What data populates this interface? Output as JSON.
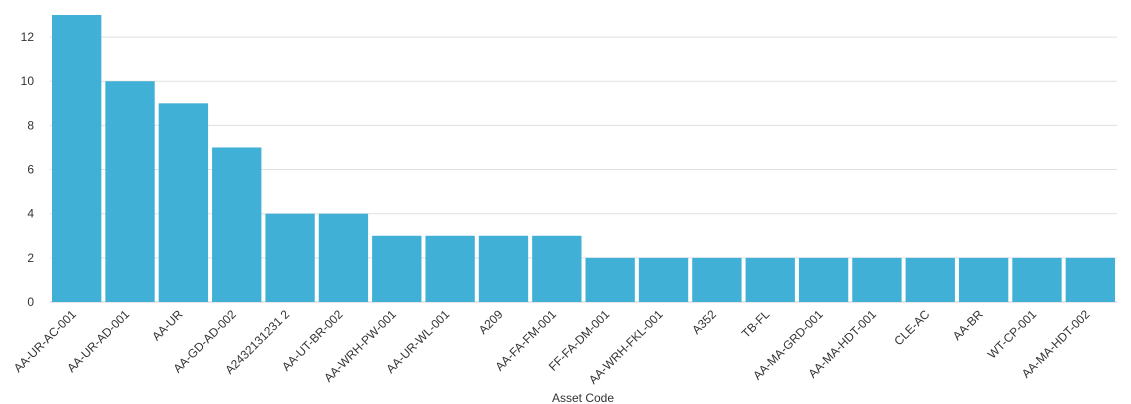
{
  "chart_data": {
    "type": "bar",
    "categories": [
      "AA-UR-AC-001",
      "AA-UR-AD-001",
      "AA-UR",
      "AA-GD-AD-002",
      "A2432131231 2",
      "AA-UT-BR-002",
      "AA-WRH-PW-001",
      "AA-UR-WL-001",
      "A209",
      "AA-FA-FM-001",
      "FF-FA-DM-001",
      "AA-WRH-FKL-001",
      "A352",
      "TB-FL",
      "AA-MA-GRD-001",
      "AA-MA-HDT-001",
      "CLE-AC",
      "AA-BR",
      "WT-CP-001",
      "AA-MA-HDT-002"
    ],
    "values": [
      13,
      10,
      9,
      7,
      4,
      4,
      3,
      3,
      3,
      3,
      2,
      2,
      2,
      2,
      2,
      2,
      2,
      2,
      2,
      2
    ],
    "xlabel": "Asset Code",
    "ylabel": "",
    "ylim": [
      0,
      13
    ],
    "yticks": [
      0,
      2,
      4,
      6,
      8,
      10,
      12
    ],
    "grid": true,
    "bar_color": "#40b0d6",
    "grid_color": "#e0e0e0",
    "text_color": "#333333"
  }
}
